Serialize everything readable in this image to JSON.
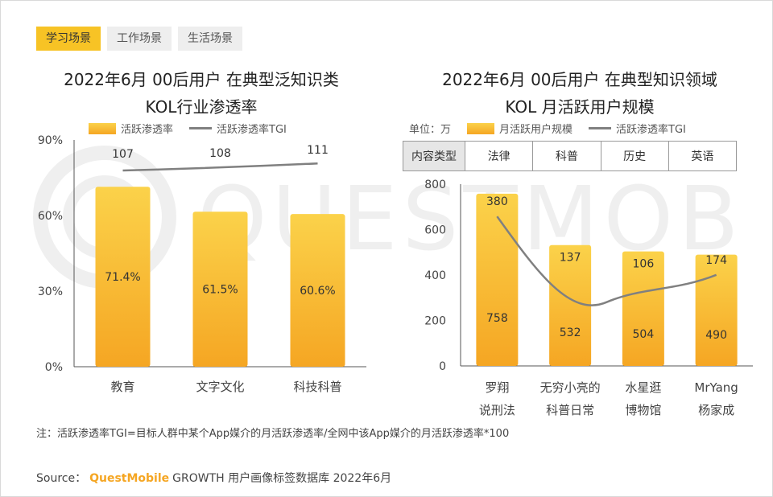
{
  "tabs": [
    {
      "label": "学习场景",
      "active": true
    },
    {
      "label": "工作场景",
      "active": false
    },
    {
      "label": "生活场景",
      "active": false
    }
  ],
  "watermark_text": "QUESTMOBILE",
  "left": {
    "title_line1": "2022年6月 00后用户 在典型泛知识类",
    "title_line2": "KOL行业渗透率",
    "legend_bar": "活跃渗透率",
    "legend_line": "活跃渗透率TGI"
  },
  "right": {
    "title_line1": "2022年6月 00后用户 在典型知识领域",
    "title_line2": "KOL 月活跃用户规模",
    "unit": "单位：万",
    "legend_bar": "月活跃用户规模",
    "legend_line": "活跃渗透率TGI",
    "table_header": "内容类型",
    "table_cells": [
      "法律",
      "科普",
      "历史",
      "英语"
    ]
  },
  "colors": {
    "accent": "#f7c325",
    "bar_top": "#fbd24a",
    "bar_bottom": "#f5a623",
    "line": "#808080",
    "brand": "#f5a623"
  },
  "chart_data": [
    {
      "type": "bar",
      "title": "2022年6月 00后用户 在典型泛知识类 KOL行业渗透率",
      "categories": [
        "教育",
        "文字文化",
        "科技科普"
      ],
      "series": [
        {
          "name": "活跃渗透率",
          "values": [
            71.4,
            61.5,
            60.6
          ],
          "labels": [
            "71.4%",
            "61.5%",
            "60.6%"
          ]
        },
        {
          "name": "活跃渗透率TGI",
          "type": "line",
          "values": [
            107,
            108,
            111
          ]
        }
      ],
      "yticks": [
        "0%",
        "30%",
        "60%",
        "90%"
      ],
      "ylim": [
        0,
        90
      ]
    },
    {
      "type": "bar",
      "title": "2022年6月 00后用户 在典型知识领域 KOL 月活跃用户规模",
      "categories": [
        [
          "罗翔",
          "说刑法"
        ],
        [
          "无穷小亮的",
          "科普日常"
        ],
        [
          "水星逛",
          "博物馆"
        ],
        [
          "MrYang",
          "杨家成"
        ]
      ],
      "series": [
        {
          "name": "月活跃用户规模",
          "values": [
            758,
            532,
            504,
            490
          ]
        },
        {
          "name": "活跃渗透率TGI",
          "type": "line",
          "values": [
            380,
            137,
            106,
            174
          ]
        }
      ],
      "yticks": [
        "0",
        "200",
        "400",
        "600",
        "800"
      ],
      "ylim": [
        0,
        800
      ]
    }
  ],
  "note": "注：活跃渗透率TGI=目标人群中某个App媒介的月活跃渗透率/全网中该App媒介的月活跃渗透率*100",
  "source": {
    "prefix": "Source：",
    "brand": "QuestMobile",
    "text": "GROWTH 用户画像标签数据库 2022年6月"
  }
}
